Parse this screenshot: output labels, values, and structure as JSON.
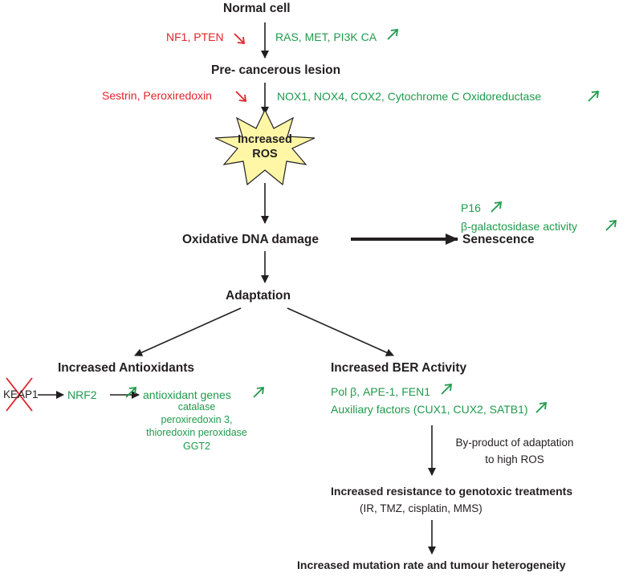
{
  "colors": {
    "green": "#1f9a4b",
    "red": "#e0242b",
    "black": "#231f20",
    "burst": "#fff7a6"
  },
  "nodes": {
    "normal_cell": "Normal cell",
    "precancerous": "Pre- cancerous lesion",
    "ros_line1": "Increased",
    "ros_line2": "ROS",
    "oxidative": "Oxidative DNA damage",
    "senescence": "Senescence",
    "adaptation": "Adaptation",
    "antioxidants": "Increased Antioxidants",
    "ber": "Increased BER Activity",
    "resistance": "Increased resistance to genotoxic treatments",
    "mutation": "Increased mutation rate and tumour heterogeneity"
  },
  "labels": {
    "down1": "NF1, PTEN",
    "up1": "RAS, MET, PI3K CA",
    "down2": "Sestrin, Peroxiredoxin",
    "up2": "NOX1, NOX4, COX2, Cytochrome C Oxidoreductase",
    "p16": "P16",
    "bgal": "β-galactosidase activity",
    "keap1": "KEAP1",
    "nrf2": "NRF2",
    "antiox_genes": "antioxidant genes",
    "genes": [
      "catalase",
      "peroxiredoxin 3,",
      "thioredoxin peroxidase",
      "GGT2"
    ],
    "ber1": "Pol β, APE-1, FEN1",
    "ber2": "Auxiliary factors (CUX1, CUX2, SATB1)",
    "byproduct1": "By-product of adaptation",
    "byproduct2": "to high ROS",
    "treatments": "(IR, TMZ, cisplatin, MMS)"
  }
}
